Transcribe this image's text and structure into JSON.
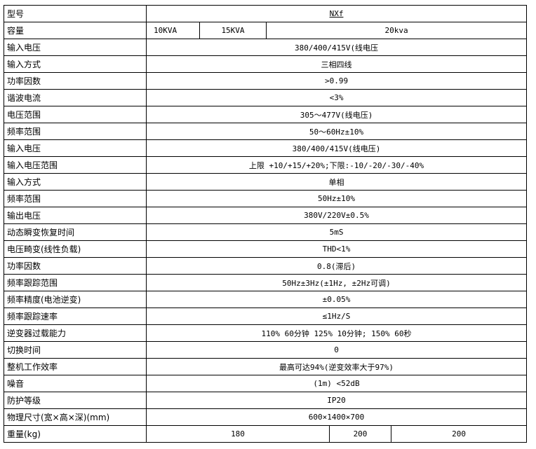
{
  "model": {
    "label": "型号",
    "value": "NXf"
  },
  "capacity": {
    "label": "容量",
    "values": [
      "10KVA",
      "15KVA",
      "20kva"
    ]
  },
  "rows": [
    {
      "label": "输入电压",
      "value": "380/400/415V(线电压"
    },
    {
      "label": "输入方式",
      "value": "三相四线"
    },
    {
      "label": "功率因数",
      "value": ">0.99"
    },
    {
      "label": "谐波电流",
      "value": "<3%"
    },
    {
      "label": "电压范围",
      "value": "305～477V(线电压)"
    },
    {
      "label": "频率范围",
      "value": "50～60Hz±10%"
    },
    {
      "label": "输入电压",
      "value": "380/400/415V(线电压)"
    },
    {
      "label": "输入电压范围",
      "value": "上限 +10/+15/+20%;下限:-10/-20/-30/-40%"
    },
    {
      "label": "输入方式",
      "value": "单相"
    },
    {
      "label": "频率范围",
      "value": "50Hz±10%"
    },
    {
      "label": "输出电压",
      "value": "380V/220V±0.5%"
    },
    {
      "label": "动态瞬变恢复时间",
      "value": "5mS"
    },
    {
      "label": "电压畸变(线性负载)",
      "value": "THD<1%"
    },
    {
      "label": "功率因数",
      "value": "0.8(滞后)"
    },
    {
      "label": "频率跟踪范围",
      "value": "50Hz±3Hz(±1Hz, ±2Hz可调)"
    },
    {
      "label": "频率精度(电池逆变)",
      "value": "±0.05%"
    },
    {
      "label": "频率跟踪速率",
      "value": "≤1Hz/S"
    },
    {
      "label": "逆变器过载能力",
      "value": "110% 60分钟 125% 10分钟; 150% 60秒"
    },
    {
      "label": "切换时间",
      "value": "0"
    },
    {
      "label": "整机工作效率",
      "value": "最高可达94%(逆变效率大于97%)"
    },
    {
      "label": "噪音",
      "value": "(1m) <52dB"
    },
    {
      "label": "防护等级",
      "value": "IP20"
    },
    {
      "label": "物理尺寸(宽×高×深)(mm)",
      "value": "600×1400×700"
    }
  ],
  "weight": {
    "label": "重量(kg)",
    "values": [
      "180",
      "200",
      "200"
    ]
  }
}
